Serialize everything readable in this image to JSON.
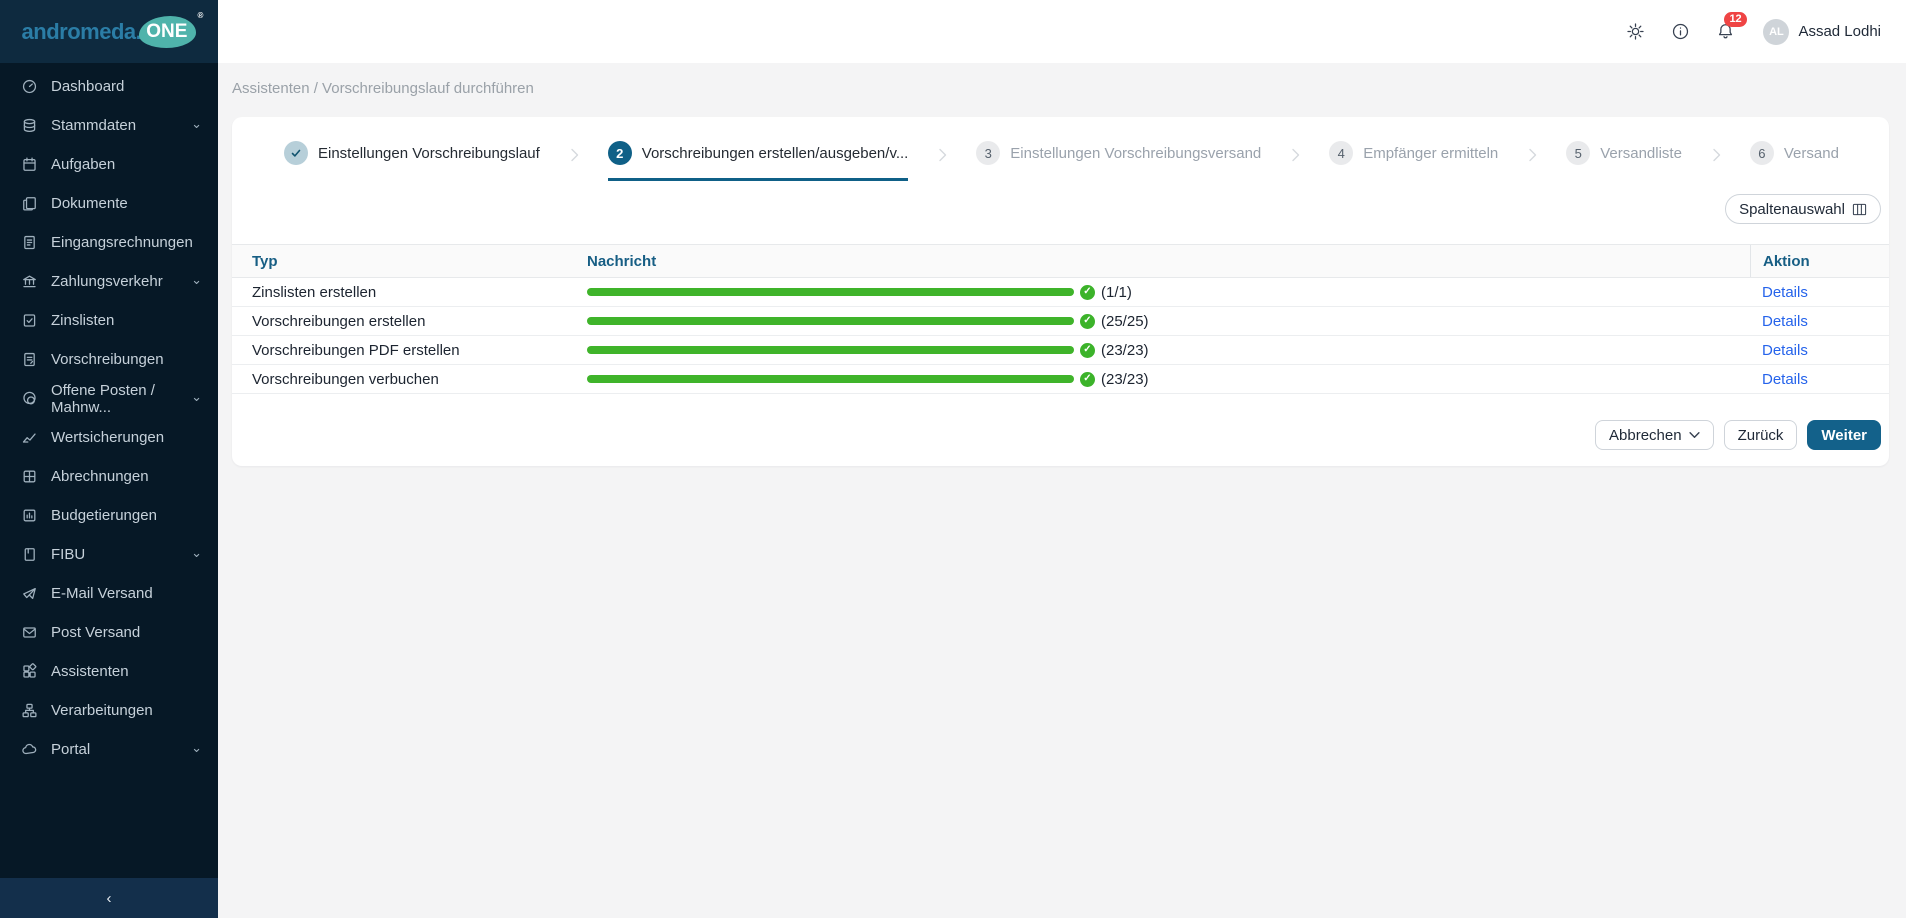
{
  "brand": {
    "name_left": "andromeda.",
    "name_right": "ONE",
    "reg": "®"
  },
  "sidebar": {
    "items": [
      {
        "label": "Dashboard",
        "icon": "dashboard-icon",
        "expandable": false
      },
      {
        "label": "Stammdaten",
        "icon": "database-icon",
        "expandable": true
      },
      {
        "label": "Aufgaben",
        "icon": "calendar-icon",
        "expandable": false
      },
      {
        "label": "Dokumente",
        "icon": "documents-icon",
        "expandable": false
      },
      {
        "label": "Eingangsrechnungen",
        "icon": "invoice-icon",
        "expandable": false
      },
      {
        "label": "Zahlungsverkehr",
        "icon": "bank-icon",
        "expandable": true
      },
      {
        "label": "Zinslisten",
        "icon": "list-check-icon",
        "expandable": false
      },
      {
        "label": "Vorschreibungen",
        "icon": "document-text-icon",
        "expandable": false
      },
      {
        "label": "Offene Posten / Mahnw...",
        "icon": "coins-icon",
        "expandable": true
      },
      {
        "label": "Wertsicherungen",
        "icon": "chart-line-icon",
        "expandable": false
      },
      {
        "label": "Abrechnungen",
        "icon": "grid-icon",
        "expandable": false
      },
      {
        "label": "Budgetierungen",
        "icon": "budget-icon",
        "expandable": false
      },
      {
        "label": "FIBU",
        "icon": "book-icon",
        "expandable": true
      },
      {
        "label": "E-Mail Versand",
        "icon": "send-icon",
        "expandable": false
      },
      {
        "label": "Post Versand",
        "icon": "mail-icon",
        "expandable": false
      },
      {
        "label": "Assistenten",
        "icon": "assistant-icon",
        "expandable": false
      },
      {
        "label": "Verarbeitungen",
        "icon": "workflow-icon",
        "expandable": false
      },
      {
        "label": "Portal",
        "icon": "cloud-icon",
        "expandable": true
      }
    ],
    "collapse_glyph": "‹"
  },
  "header": {
    "breadcrumb": "Assistenten / Vorschreibungslauf durchführen",
    "notification_count": "12",
    "user": {
      "initials": "AL",
      "name": "Assad Lodhi"
    }
  },
  "wizard": {
    "steps": [
      {
        "number": "1",
        "label": "Einstellungen Vorschreibungslauf",
        "state": "done"
      },
      {
        "number": "2",
        "label": "Vorschreibungen erstellen/ausgeben/v...",
        "state": "active"
      },
      {
        "number": "3",
        "label": "Einstellungen Vorschreibungsversand",
        "state": "pending"
      },
      {
        "number": "4",
        "label": "Empfänger ermitteln",
        "state": "pending"
      },
      {
        "number": "5",
        "label": "Versandliste",
        "state": "pending"
      },
      {
        "number": "6",
        "label": "Versand",
        "state": "pending"
      }
    ]
  },
  "toolbar": {
    "column_select_label": "Spaltenauswahl"
  },
  "table": {
    "headers": {
      "typ": "Typ",
      "nachricht": "Nachricht",
      "aktion": "Aktion"
    },
    "rows": [
      {
        "typ": "Zinslisten erstellen",
        "progress": 100,
        "count": "(1/1)",
        "action": "Details"
      },
      {
        "typ": "Vorschreibungen erstellen",
        "progress": 100,
        "count": "(25/25)",
        "action": "Details"
      },
      {
        "typ": "Vorschreibungen PDF erstellen",
        "progress": 100,
        "count": "(23/23)",
        "action": "Details"
      },
      {
        "typ": "Vorschreibungen verbuchen",
        "progress": 100,
        "count": "(23/23)",
        "action": "Details"
      }
    ]
  },
  "footer_buttons": {
    "cancel": "Abbrechen",
    "back": "Zurück",
    "next": "Weiter"
  },
  "colors": {
    "accent": "#13618a",
    "progress_green": "#3fb42a",
    "link_blue": "#2563eb",
    "alert_red": "#ef4444",
    "logo_teal": "#4fb3ab",
    "sidebar_bg": "#061826"
  }
}
